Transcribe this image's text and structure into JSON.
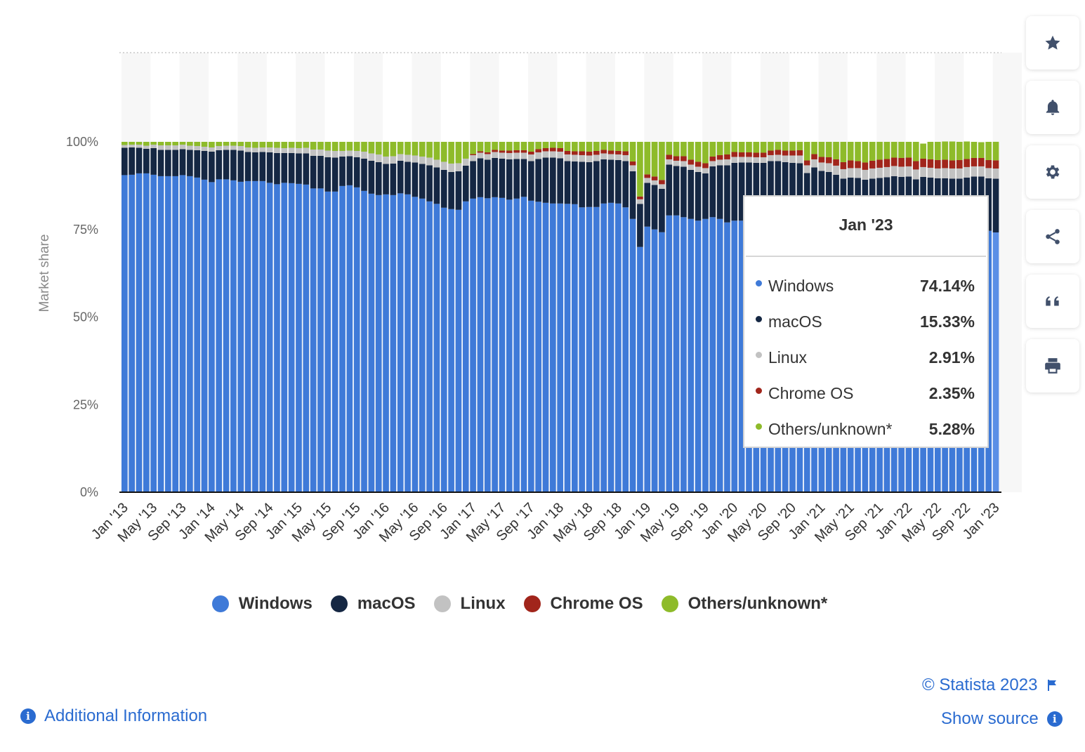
{
  "chart_data": {
    "type": "bar",
    "stacked": true,
    "title": "",
    "xlabel": "",
    "ylabel": "Market share",
    "ylim": [
      0,
      100
    ],
    "yticks": [
      "0%",
      "25%",
      "50%",
      "75%",
      "100%"
    ],
    "grid": "alternating vertical bands",
    "legend_position": "bottom",
    "start_month": "Jan '13",
    "x_tick_labels": [
      "Jan '13",
      "May '13",
      "Sep '13",
      "Jan '14",
      "May '14",
      "Sep '14",
      "Jan '15",
      "May '15",
      "Sep '15",
      "Jan '16",
      "May '16",
      "Sep '16",
      "Jan '17",
      "May '17",
      "Sep '17",
      "Jan '18",
      "May '18",
      "Sep '18",
      "Jan '19",
      "May '19",
      "Sep '19",
      "Jan '20",
      "May '20",
      "Sep '20",
      "Jan '21",
      "May '21",
      "Sep '21",
      "Jan '22",
      "May '22",
      "Sep '22",
      "Jan '23"
    ],
    "series": [
      {
        "name": "Windows",
        "color": "#3f7ad8",
        "values": [
          90.5,
          90.6,
          91.0,
          91.0,
          90.6,
          90.2,
          90.2,
          90.2,
          90.5,
          90.2,
          89.8,
          89.2,
          88.5,
          89.3,
          89.3,
          89.0,
          88.6,
          88.8,
          88.8,
          88.8,
          88.3,
          87.9,
          88.3,
          88.2,
          88.0,
          87.8,
          86.7,
          86.7,
          85.8,
          85.8,
          87.4,
          87.6,
          87.0,
          86.0,
          85.2,
          84.8,
          85.0,
          84.8,
          85.3,
          85.0,
          84.3,
          83.8,
          83.0,
          82.3,
          81.2,
          80.8,
          80.6,
          83.0,
          83.8,
          84.2,
          83.9,
          84.2,
          84.0,
          83.5,
          83.8,
          84.3,
          83.2,
          82.9,
          82.6,
          82.4,
          82.4,
          82.3,
          82.2,
          81.3,
          81.4,
          81.4,
          82.4,
          82.6,
          82.4,
          81.3,
          78.0,
          70.0,
          75.8,
          75.0,
          74.2,
          79.0,
          79.0,
          78.5,
          78.0,
          77.5,
          78.0,
          78.5,
          78.0,
          77.0,
          77.5,
          77.5,
          77.5,
          76.5,
          76.2,
          75.7,
          75.0,
          74.8,
          74.5,
          74.1,
          72.5,
          74.6,
          74.7,
          74.2,
          73.8,
          73.0,
          73.8,
          73.7,
          74.0,
          74.5,
          74.2,
          74.1,
          74.2,
          74.5,
          74.8,
          74.3,
          74.6,
          74.3,
          74.0,
          74.5,
          74.2,
          74.7,
          75.0,
          75.5,
          74.9,
          74.6,
          74.14
        ]
      },
      {
        "name": "macOS",
        "color": "#152743",
        "values": [
          7.8,
          7.8,
          7.3,
          7.0,
          7.6,
          7.5,
          7.5,
          7.5,
          7.4,
          7.5,
          7.8,
          8.2,
          8.7,
          8.3,
          8.4,
          8.7,
          8.9,
          8.3,
          8.2,
          8.3,
          8.7,
          8.9,
          8.5,
          8.6,
          8.7,
          8.9,
          9.3,
          9.3,
          9.8,
          9.7,
          8.4,
          8.3,
          8.6,
          9.2,
          9.4,
          9.4,
          8.7,
          9.0,
          9.3,
          9.3,
          9.8,
          9.9,
          10.3,
          10.4,
          10.8,
          10.6,
          11.0,
          10.2,
          10.7,
          11.1,
          11.0,
          11.2,
          11.2,
          11.5,
          11.3,
          10.8,
          11.3,
          12.2,
          12.9,
          13.1,
          12.9,
          12.2,
          12.2,
          13.0,
          12.8,
          13.1,
          12.6,
          12.3,
          12.4,
          13.2,
          13.6,
          12.3,
          12.5,
          12.7,
          12.4,
          14.5,
          14.1,
          14.4,
          14.0,
          13.9,
          13.0,
          14.5,
          15.3,
          16.3,
          16.5,
          16.6,
          16.6,
          17.5,
          17.8,
          18.8,
          19.5,
          19.4,
          19.5,
          19.8,
          18.6,
          18.1,
          17.0,
          17.2,
          16.8,
          16.5,
          16.0,
          16.0,
          15.2,
          15.0,
          15.5,
          15.8,
          16.0,
          15.5,
          15.3,
          15.0,
          15.4,
          15.5,
          15.6,
          15.1,
          15.3,
          14.8,
          14.8,
          14.6,
          15.2,
          15.0,
          15.33
        ]
      },
      {
        "name": "Linux",
        "color": "#c2c2c2",
        "values": [
          0.8,
          0.8,
          0.9,
          0.9,
          1.0,
          1.3,
          1.3,
          1.3,
          1.3,
          1.2,
          1.2,
          1.2,
          1.2,
          1.2,
          1.2,
          1.2,
          1.3,
          1.3,
          1.3,
          1.3,
          1.4,
          1.5,
          1.4,
          1.5,
          1.5,
          1.6,
          1.8,
          1.8,
          1.9,
          1.9,
          1.6,
          1.6,
          1.8,
          2.0,
          2.1,
          2.2,
          2.1,
          2.1,
          1.9,
          2.0,
          2.0,
          2.1,
          2.2,
          2.2,
          2.3,
          2.4,
          2.3,
          2.0,
          1.7,
          1.6,
          1.6,
          1.7,
          1.7,
          1.8,
          1.8,
          1.8,
          1.9,
          1.9,
          1.8,
          1.8,
          1.9,
          1.9,
          1.9,
          1.9,
          1.9,
          1.8,
          1.7,
          1.6,
          1.6,
          1.7,
          1.7,
          1.3,
          1.4,
          1.3,
          1.3,
          1.5,
          1.5,
          1.6,
          1.5,
          1.5,
          1.5,
          1.5,
          1.6,
          1.7,
          1.7,
          1.6,
          1.6,
          1.6,
          1.6,
          1.7,
          1.8,
          1.9,
          2.1,
          2.2,
          2.2,
          2.3,
          2.4,
          2.5,
          2.6,
          2.7,
          2.7,
          2.8,
          2.8,
          2.9,
          2.9,
          2.9,
          2.9,
          2.9,
          2.9,
          2.8,
          2.8,
          2.8,
          2.8,
          2.9,
          2.9,
          2.9,
          3.0,
          2.9,
          2.9,
          2.9,
          2.91
        ]
      },
      {
        "name": "Chrome OS",
        "color": "#a1251b",
        "values": [
          0,
          0,
          0,
          0,
          0,
          0,
          0,
          0,
          0,
          0,
          0,
          0,
          0,
          0,
          0,
          0,
          0,
          0,
          0,
          0,
          0,
          0,
          0,
          0,
          0,
          0,
          0,
          0,
          0,
          0,
          0,
          0,
          0,
          0,
          0,
          0,
          0,
          0,
          0,
          0,
          0,
          0,
          0,
          0,
          0,
          0,
          0,
          0,
          0.3,
          0.4,
          0.5,
          0.6,
          0.6,
          0.7,
          0.7,
          0.7,
          0.8,
          0.9,
          0.9,
          1.0,
          1.0,
          1.0,
          1.0,
          1.1,
          1.1,
          1.1,
          1.0,
          1.0,
          1.0,
          1.1,
          1.1,
          0.8,
          1.0,
          1.1,
          1.2,
          1.3,
          1.3,
          1.4,
          1.4,
          1.4,
          1.4,
          1.3,
          1.3,
          1.4,
          1.4,
          1.3,
          1.3,
          1.3,
          1.3,
          1.3,
          1.4,
          1.4,
          1.4,
          1.5,
          1.4,
          1.5,
          1.6,
          1.7,
          1.8,
          2.0,
          2.2,
          2.0,
          2.1,
          2.2,
          2.3,
          2.3,
          2.4,
          2.5,
          2.5,
          2.4,
          2.4,
          2.4,
          2.4,
          2.4,
          2.3,
          2.4,
          2.3,
          2.4,
          2.4,
          2.3,
          2.35
        ]
      },
      {
        "name": "Others/unknown*",
        "color": "#8ebb2a",
        "values": [
          0.9,
          0.8,
          0.8,
          1.1,
          0.8,
          1.0,
          1.0,
          1.0,
          0.8,
          1.1,
          1.2,
          1.4,
          1.6,
          1.2,
          1.1,
          1.1,
          1.2,
          1.6,
          1.7,
          1.6,
          1.6,
          1.7,
          1.8,
          1.7,
          1.8,
          1.7,
          2.2,
          2.2,
          2.5,
          2.6,
          2.6,
          2.5,
          2.6,
          2.8,
          3.3,
          3.6,
          4.2,
          4.1,
          3.5,
          3.7,
          3.9,
          4.2,
          4.5,
          5.1,
          5.7,
          6.2,
          6.1,
          4.8,
          3.5,
          2.7,
          3.0,
          2.3,
          2.5,
          2.5,
          2.4,
          2.4,
          2.8,
          2.1,
          1.8,
          1.7,
          1.8,
          2.6,
          2.7,
          2.7,
          2.8,
          2.6,
          2.3,
          2.5,
          2.6,
          2.7,
          5.6,
          15.6,
          9.3,
          9.9,
          10.9,
          3.7,
          4.1,
          4.1,
          5.1,
          5.7,
          6.1,
          4.2,
          3.8,
          3.6,
          2.9,
          3.0,
          3.0,
          3.1,
          3.1,
          2.5,
          2.3,
          2.5,
          2.5,
          2.4,
          5.3,
          3.5,
          4.3,
          4.4,
          5.0,
          5.8,
          5.3,
          5.5,
          5.9,
          5.4,
          5.1,
          4.9,
          4.5,
          4.6,
          4.5,
          5.5,
          4.3,
          5.0,
          5.2,
          5.2,
          5.4,
          5.2,
          5.0,
          4.6,
          4.5,
          5.2,
          5.28
        ]
      }
    ]
  },
  "legend": [
    {
      "name": "Windows",
      "color": "#3f7ad8"
    },
    {
      "name": "macOS",
      "color": "#152743"
    },
    {
      "name": "Linux",
      "color": "#c2c2c2"
    },
    {
      "name": "Chrome OS",
      "color": "#a1251b"
    },
    {
      "name": "Others/unknown*",
      "color": "#8ebb2a"
    }
  ],
  "tooltip": {
    "title": "Jan '23",
    "rows": [
      {
        "name": "Windows",
        "value": "74.14%",
        "color": "#3f7ad8"
      },
      {
        "name": "macOS",
        "value": "15.33%",
        "color": "#152743"
      },
      {
        "name": "Linux",
        "value": "2.91%",
        "color": "#c2c2c2"
      },
      {
        "name": "Chrome OS",
        "value": "2.35%",
        "color": "#a1251b"
      },
      {
        "name": "Others/unknown*",
        "value": "5.28%",
        "color": "#8ebb2a"
      }
    ]
  },
  "toolbar": {
    "icons": [
      "star-icon",
      "bell-icon",
      "gear-icon",
      "share-icon",
      "quote-icon",
      "print-icon"
    ]
  },
  "footer": {
    "copyright": "© Statista 2023",
    "show_source": "Show source",
    "additional_info": "Additional Information"
  },
  "colors": {
    "accent": "#2a6bd0",
    "icon": "#41506b"
  }
}
